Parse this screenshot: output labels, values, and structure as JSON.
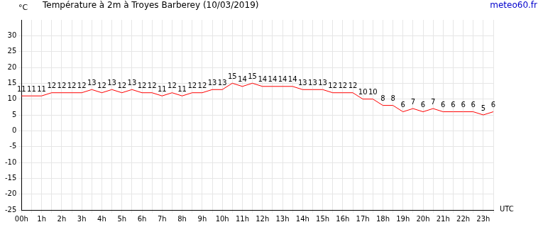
{
  "chart_data": {
    "type": "line",
    "title": "Température à 2m à Troyes Barberey (10/03/2019)",
    "source": "meteo60.fr",
    "y_label": "°C",
    "x_label": "UTC",
    "categories": [
      "00h",
      null,
      "1h",
      null,
      "2h",
      null,
      "3h",
      null,
      "4h",
      null,
      "5h",
      null,
      "6h",
      null,
      "7h",
      null,
      "8h",
      null,
      "9h",
      null,
      "10h",
      null,
      "11h",
      null,
      "12h",
      null,
      "13h",
      null,
      "14h",
      null,
      "15h",
      null,
      "16h",
      null,
      "17h",
      null,
      "18h",
      null,
      "19h",
      null,
      "20h",
      null,
      "21h",
      null,
      "22h",
      null,
      "23h",
      null
    ],
    "values": [
      11,
      11,
      11,
      12,
      12,
      12,
      12,
      13,
      12,
      13,
      12,
      13,
      12,
      12,
      11,
      12,
      11,
      12,
      12,
      13,
      13,
      15,
      14,
      15,
      14,
      14,
      14,
      14,
      13,
      13,
      13,
      12,
      12,
      12,
      10,
      10,
      8,
      8,
      6,
      7,
      6,
      7,
      6,
      6,
      6,
      6,
      5,
      6
    ],
    "color": "#ff0000",
    "ylim": [
      -25,
      35
    ],
    "yticks": [
      -25,
      -20,
      -15,
      -10,
      -5,
      0,
      5,
      10,
      15,
      20,
      25,
      30
    ],
    "grid": true,
    "data_labels": true
  }
}
